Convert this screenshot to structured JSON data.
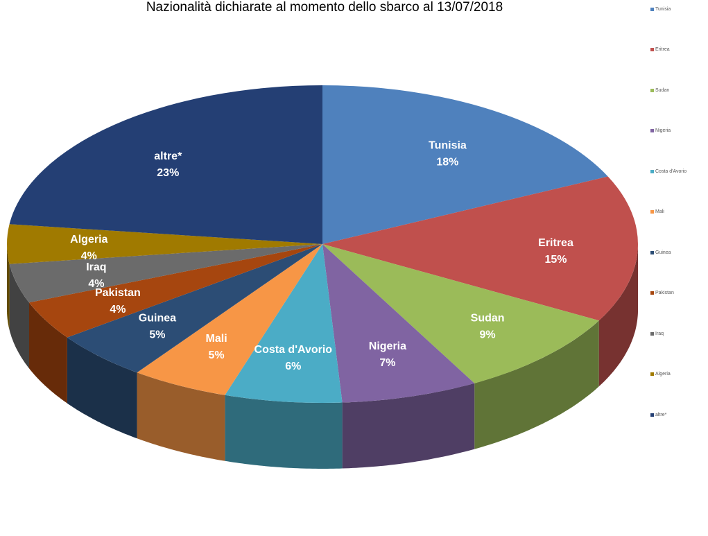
{
  "chart_data": {
    "type": "pie",
    "title": "Nazionalità dichiarate al momento dello sbarco al 13/07/2018",
    "legend_position": "right",
    "slices": [
      {
        "label": "Tunisia",
        "percent_label": "18%",
        "value": 18,
        "color": "#4F81BD"
      },
      {
        "label": "Eritrea",
        "percent_label": "15%",
        "value": 15,
        "color": "#C0504D"
      },
      {
        "label": "Sudan",
        "percent_label": "9%",
        "value": 9,
        "color": "#9BBB59"
      },
      {
        "label": "Nigeria",
        "percent_label": "7%",
        "value": 7,
        "color": "#8064A2"
      },
      {
        "label": "Costa d'Avorio",
        "percent_label": "6%",
        "value": 6,
        "color": "#4BACC6"
      },
      {
        "label": "Mali",
        "percent_label": "5%",
        "value": 5,
        "color": "#F79646"
      },
      {
        "label": "Guinea",
        "percent_label": "5%",
        "value": 5,
        "color": "#2C4D75"
      },
      {
        "label": "Pakistan",
        "percent_label": "4%",
        "value": 4,
        "color": "#A6460F"
      },
      {
        "label": "Iraq",
        "percent_label": "4%",
        "value": 4,
        "color": "#6B6B6B"
      },
      {
        "label": "Algeria",
        "percent_label": "4%",
        "value": 4,
        "color": "#A07A00"
      },
      {
        "label": "altre*",
        "percent_label": "23%",
        "value": 23,
        "color": "#243F74"
      }
    ]
  }
}
